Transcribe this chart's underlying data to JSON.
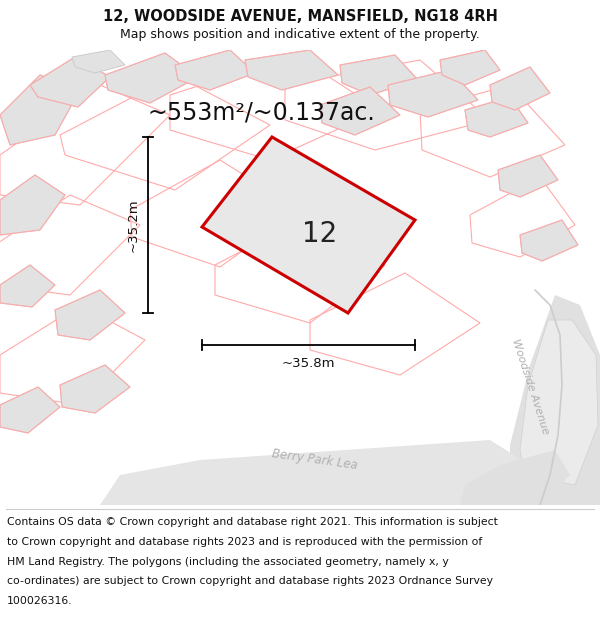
{
  "title": "12, WOODSIDE AVENUE, MANSFIELD, NG18 4RH",
  "subtitle": "Map shows position and indicative extent of the property.",
  "area_label": "~553m²/~0.137ac.",
  "number_label": "12",
  "dim_height": "~35.2m",
  "dim_width": "~35.8m",
  "footer_lines": [
    "Contains OS data © Crown copyright and database right 2021. This information is subject",
    "to Crown copyright and database rights 2023 and is reproduced with the permission of",
    "HM Land Registry. The polygons (including the associated geometry, namely x, y",
    "co-ordinates) are subject to Crown copyright and database rights 2023 Ordnance Survey",
    "100026316."
  ],
  "map_bg": "#f0f0f0",
  "plot_fill": "#e8e8e8",
  "plot_outline": "#cc0000",
  "building_fill": "#e2e2e2",
  "building_edge": "#cccccc",
  "cadastral_color": "#ffaaaa",
  "road_fill": "#e8e8e8",
  "road_label_color": "#b0b0b0",
  "road_curve_color": "#cccccc",
  "title_fontsize": 10.5,
  "subtitle_fontsize": 9,
  "area_fontsize": 17,
  "number_fontsize": 20,
  "dim_fontsize": 9.5,
  "footer_fontsize": 7.8,
  "street_fontsize": 8.5
}
